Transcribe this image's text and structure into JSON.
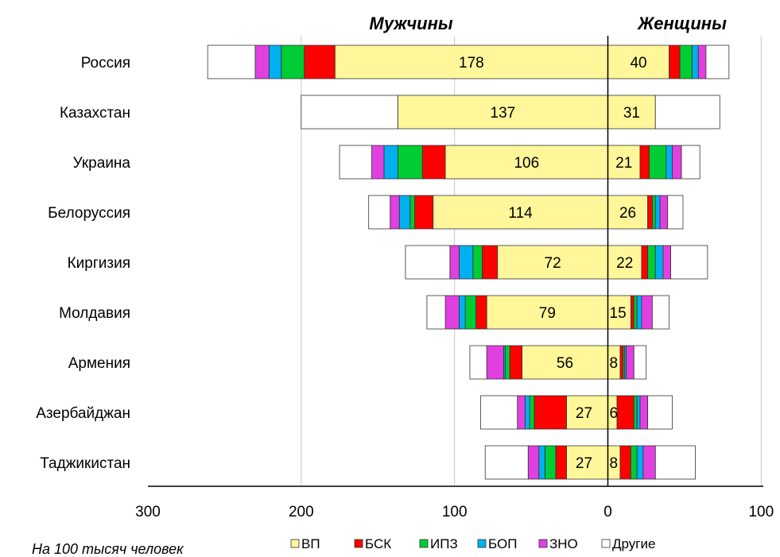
{
  "chart_data": {
    "type": "bar",
    "orientation": "horizontal-diverging",
    "headers": {
      "left": "Мужчины",
      "right": "Женщины"
    },
    "footnote": "На 100 тысяч человек",
    "x_ticks": [
      "300",
      "200",
      "100",
      "0",
      "100"
    ],
    "xlim": [
      -300,
      100
    ],
    "grid": true,
    "legend_position": "bottom",
    "series": [
      {
        "key": "vp",
        "name": "ВП",
        "color": "#FFF79A"
      },
      {
        "key": "bsk",
        "name": "БСК",
        "color": "#FF0000"
      },
      {
        "key": "ipz",
        "name": "ИПЗ",
        "color": "#00CC33"
      },
      {
        "key": "bop",
        "name": "БОП",
        "color": "#00B0F0"
      },
      {
        "key": "zno",
        "name": "ЗНО",
        "color": "#E040E0"
      },
      {
        "key": "other",
        "name": "Другие",
        "color": "#FFFFFF"
      }
    ],
    "categories": [
      "Россия",
      "Казахстан",
      "Украина",
      "Белоруссия",
      "Киргизия",
      "Молдавия",
      "Армения",
      "Азербайджан",
      "Таджикистан"
    ],
    "men": [
      {
        "vp": 178,
        "bsk": 20,
        "ipz": 15,
        "bop": 8,
        "zno": 9,
        "other": 31
      },
      {
        "vp": 137,
        "bsk": 0,
        "ipz": 0,
        "bop": 0,
        "zno": 0,
        "other": 63
      },
      {
        "vp": 106,
        "bsk": 15,
        "ipz": 16,
        "bop": 9,
        "zno": 8,
        "other": 21
      },
      {
        "vp": 114,
        "bsk": 12,
        "ipz": 3,
        "bop": 7,
        "zno": 6,
        "other": 14
      },
      {
        "vp": 72,
        "bsk": 10,
        "ipz": 6,
        "bop": 9,
        "zno": 6,
        "other": 29
      },
      {
        "vp": 79,
        "bsk": 7,
        "ipz": 7,
        "bop": 4,
        "zno": 9,
        "other": 12
      },
      {
        "vp": 56,
        "bsk": 8,
        "ipz": 3,
        "bop": 1,
        "zno": 11,
        "other": 11
      },
      {
        "vp": 27,
        "bsk": 21,
        "ipz": 3,
        "bop": 3,
        "zno": 5,
        "other": 24
      },
      {
        "vp": 27,
        "bsk": 7,
        "ipz": 7,
        "bop": 4,
        "zno": 7,
        "other": 28
      }
    ],
    "women": [
      {
        "vp": 40,
        "bsk": 7,
        "ipz": 8,
        "bop": 4,
        "zno": 5,
        "other": 15
      },
      {
        "vp": 31,
        "bsk": 0,
        "ipz": 0,
        "bop": 0,
        "zno": 0,
        "other": 42
      },
      {
        "vp": 21,
        "bsk": 6,
        "ipz": 11,
        "bop": 4,
        "zno": 6,
        "other": 12
      },
      {
        "vp": 26,
        "bsk": 3,
        "ipz": 2,
        "bop": 3,
        "zno": 5,
        "other": 10
      },
      {
        "vp": 22,
        "bsk": 4,
        "ipz": 5,
        "bop": 5,
        "zno": 5,
        "other": 24
      },
      {
        "vp": 15,
        "bsk": 2,
        "ipz": 2,
        "bop": 3,
        "zno": 7,
        "other": 11
      },
      {
        "vp": 8,
        "bsk": 2,
        "ipz": 1,
        "bop": 1,
        "zno": 5,
        "other": 8
      },
      {
        "vp": 6,
        "bsk": 11,
        "ipz": 2,
        "bop": 2,
        "zno": 5,
        "other": 16
      },
      {
        "vp": 8,
        "bsk": 7,
        "ipz": 4,
        "bop": 4,
        "zno": 8,
        "other": 26
      }
    ]
  }
}
